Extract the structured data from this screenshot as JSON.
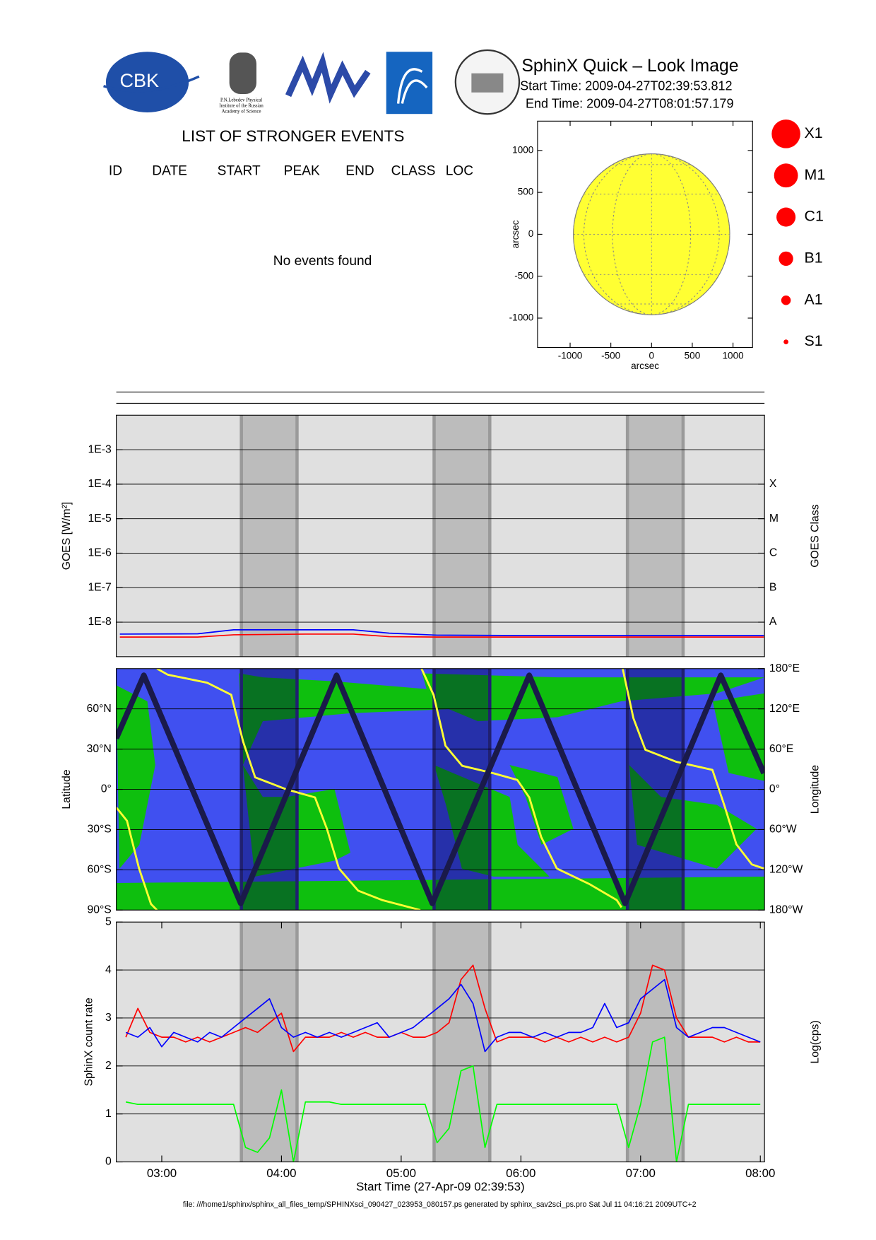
{
  "header": {
    "title": "SphinX Quick – Look Image",
    "start_time": "Start Time: 2009-04-27T02:39:53.812",
    "end_time": "End Time: 2009-04-27T08:01:57.179"
  },
  "logos": {
    "cbk": "CBK",
    "lebedev": [
      "P.N.Lebedev Physical",
      "Institute of the Russian",
      "Academy of Science"
    ]
  },
  "events": {
    "title": "LIST OF STRONGER EVENTS",
    "columns": [
      "ID",
      "DATE",
      "START",
      "PEAK",
      "END",
      "CLASS",
      "LOC"
    ],
    "message": "No events found"
  },
  "class_legend": [
    "X1",
    "M1",
    "C1",
    "B1",
    "A1",
    "S1"
  ],
  "eclipses": [
    [
      3.665,
      4.13
    ],
    [
      5.275,
      5.74
    ],
    [
      6.89,
      7.355
    ]
  ],
  "footer": "file: ///home1/sphinx/sphinx_all_files_temp/SPHINXsci_090427_023953_080157.ps generated by sphinx_sav2sci_ps.pro Sat Jul 11 04:16:21 2009UTC+2",
  "chart_data": [
    {
      "type": "disk",
      "xlabel": "arcsec",
      "ylabel": "arcsec",
      "xlim": [
        -1400,
        1240
      ],
      "ylim": [
        -1350,
        1350
      ],
      "xticks": [
        -1000,
        -500,
        0,
        500,
        1000
      ],
      "yticks": [
        -1000,
        -500,
        0,
        500,
        1000
      ],
      "radius": 960,
      "color": "#ffff33"
    },
    {
      "type": "line",
      "ylabel": "GOES [W/m²]",
      "y2label": "GOES Class",
      "log": true,
      "grid": true,
      "background": "#e0e0e0",
      "xlim": [
        2.62,
        8.035
      ],
      "ylim": [
        1e-09,
        0.01
      ],
      "yticks": [
        {
          "value": 0.001,
          "label": "1E-3"
        },
        {
          "value": 0.0001,
          "label": "1E-4"
        },
        {
          "value": 1e-05,
          "label": "1E-5"
        },
        {
          "value": 1e-06,
          "label": "1E-6"
        },
        {
          "value": 1e-07,
          "label": "1E-7"
        },
        {
          "value": 1e-08,
          "label": "1E-8"
        }
      ],
      "y2ticks": [
        {
          "value": 0.0001,
          "label": "X"
        },
        {
          "value": 1e-05,
          "label": "M"
        },
        {
          "value": 1e-06,
          "label": "C"
        },
        {
          "value": 1e-07,
          "label": "B"
        },
        {
          "value": 1e-08,
          "label": "A"
        }
      ],
      "series": [
        {
          "color": "#ff0000",
          "x": [
            2.65,
            3.3,
            3.6,
            4.2,
            4.6,
            4.9,
            5.3,
            6.0,
            7.0,
            8.03
          ],
          "values": [
            3.7e-09,
            3.7e-09,
            4.3e-09,
            4.5e-09,
            4.5e-09,
            3.8e-09,
            3.7e-09,
            3.7e-09,
            3.7e-09,
            3.7e-09
          ]
        },
        {
          "color": "#0000ff",
          "x": [
            2.65,
            3.3,
            3.6,
            4.2,
            4.6,
            4.9,
            5.3,
            6.0,
            7.0,
            8.03
          ],
          "values": [
            4.5e-09,
            4.6e-09,
            6e-09,
            6e-09,
            6e-09,
            4.8e-09,
            4.2e-09,
            4.1e-09,
            4.1e-09,
            4.1e-09
          ]
        }
      ]
    },
    {
      "type": "line",
      "ylabel": "Latitude",
      "y2label": "Longitude",
      "grid": true,
      "background": "#4050f0",
      "xlim": [
        2.62,
        8.035
      ],
      "ylim": [
        -90,
        90
      ],
      "y2lim": [
        -180,
        180
      ],
      "yticks": [
        {
          "value": 60,
          "label": "60°N"
        },
        {
          "value": 30,
          "label": "30°N"
        },
        {
          "value": 0,
          "label": "0°"
        },
        {
          "value": -30,
          "label": "30°S"
        },
        {
          "value": -60,
          "label": "60°S"
        },
        {
          "value": -90,
          "label": "90°S"
        }
      ],
      "y2ticks": [
        {
          "value": 180,
          "label": "180°E"
        },
        {
          "value": 120,
          "label": "120°E"
        },
        {
          "value": 60,
          "label": "60°E"
        },
        {
          "value": 0,
          "label": "0°"
        },
        {
          "value": -60,
          "label": "60°W"
        },
        {
          "value": -120,
          "label": "120°W"
        },
        {
          "value": -180,
          "label": "180°W"
        }
      ],
      "series": [
        {
          "color": "#ffff33",
          "axis": "y2",
          "x": [
            2.62,
            2.71,
            2.81,
            2.91,
            2.96,
            2.96,
            2.96,
            3.05,
            3.38,
            3.58,
            3.68,
            3.78,
            4.04,
            4.28,
            4.38,
            4.48,
            4.64,
            4.84,
            5.16,
            5.17,
            5.17,
            5.27,
            5.37,
            5.51,
            5.77,
            5.97,
            6.07,
            6.17,
            6.3,
            6.57,
            6.8,
            6.84,
            6.85,
            6.85,
            6.94,
            7.04,
            7.3,
            7.6,
            7.7,
            7.8,
            7.93,
            8.03
          ],
          "values": [
            -27,
            -47,
            -118,
            -171,
            -180,
            null,
            180,
            171,
            159,
            141,
            71,
            18,
            0,
            -12,
            -59,
            -118,
            -151,
            -165,
            -180,
            null,
            180,
            141,
            65,
            35,
            24,
            14,
            -12,
            -71,
            -118,
            -141,
            -165,
            -176,
            null,
            180,
            106,
            59,
            41,
            29,
            -24,
            -82,
            -112,
            -118
          ]
        },
        {
          "color": "#1a1a4a",
          "x": [
            2.62,
            2.85,
            3.66,
            4.46,
            5.26,
            6.07,
            6.87,
            7.67,
            8.03
          ],
          "values": [
            38,
            85,
            -85,
            85,
            -85,
            85,
            -85,
            85,
            12
          ]
        }
      ]
    },
    {
      "type": "line",
      "ylabel": "SphinX count rate",
      "y2label": "Log(cps)",
      "xlabel": "Start Time (27-Apr-09 02:39:53)",
      "grid": true,
      "background": "#e0e0e0",
      "xlim": [
        2.62,
        8.035
      ],
      "ylim": [
        0,
        5
      ],
      "yticks": [
        0,
        1,
        2,
        3,
        4,
        5
      ],
      "xticks": [
        {
          "value": 3,
          "label": "03:00"
        },
        {
          "value": 4,
          "label": "04:00"
        },
        {
          "value": 5,
          "label": "05:00"
        },
        {
          "value": 6,
          "label": "06:00"
        },
        {
          "value": 7,
          "label": "07:00"
        },
        {
          "value": 8,
          "label": "08:00"
        }
      ],
      "x": [
        2.7,
        2.8,
        2.9,
        3.0,
        3.1,
        3.2,
        3.3,
        3.4,
        3.5,
        3.6,
        3.7,
        3.8,
        3.9,
        4.0,
        4.1,
        4.2,
        4.3,
        4.4,
        4.5,
        4.6,
        4.7,
        4.8,
        4.9,
        5.0,
        5.1,
        5.2,
        5.3,
        5.4,
        5.5,
        5.6,
        5.7,
        5.8,
        5.9,
        6.0,
        6.1,
        6.2,
        6.3,
        6.4,
        6.5,
        6.6,
        6.7,
        6.8,
        6.9,
        7.0,
        7.1,
        7.2,
        7.3,
        7.4,
        7.5,
        7.6,
        7.7,
        7.8,
        7.9,
        8.0
      ],
      "series": [
        {
          "color": "#00ff00",
          "values": [
            1.25,
            1.2,
            1.2,
            1.2,
            1.2,
            1.2,
            1.2,
            1.2,
            1.2,
            1.2,
            0.3,
            0.2,
            0.5,
            1.5,
            0.0,
            1.25,
            1.25,
            1.25,
            1.2,
            1.2,
            1.2,
            1.2,
            1.2,
            1.2,
            1.2,
            1.2,
            0.4,
            0.7,
            1.9,
            2.0,
            0.3,
            1.2,
            1.2,
            1.2,
            1.2,
            1.2,
            1.2,
            1.2,
            1.2,
            1.2,
            1.2,
            1.2,
            0.3,
            1.2,
            2.5,
            2.6,
            0.0,
            1.2,
            1.2,
            1.2,
            1.2,
            1.2,
            1.2,
            1.2
          ]
        },
        {
          "color": "#ff0000",
          "values": [
            2.6,
            3.2,
            2.7,
            2.6,
            2.6,
            2.5,
            2.6,
            2.5,
            2.6,
            2.7,
            2.8,
            2.7,
            2.9,
            3.1,
            2.3,
            2.6,
            2.6,
            2.6,
            2.7,
            2.6,
            2.7,
            2.6,
            2.6,
            2.7,
            2.6,
            2.6,
            2.7,
            2.9,
            3.8,
            4.1,
            3.2,
            2.5,
            2.6,
            2.6,
            2.6,
            2.5,
            2.6,
            2.5,
            2.6,
            2.5,
            2.6,
            2.5,
            2.6,
            3.1,
            4.1,
            4.0,
            3.0,
            2.6,
            2.6,
            2.6,
            2.5,
            2.6,
            2.5,
            2.5
          ]
        },
        {
          "color": "#0000ff",
          "values": [
            2.7,
            2.6,
            2.8,
            2.4,
            2.7,
            2.6,
            2.5,
            2.7,
            2.6,
            2.8,
            3.0,
            3.2,
            3.4,
            2.8,
            2.6,
            2.7,
            2.6,
            2.7,
            2.6,
            2.7,
            2.8,
            2.9,
            2.6,
            2.7,
            2.8,
            3.0,
            3.2,
            3.4,
            3.7,
            3.3,
            2.3,
            2.6,
            2.7,
            2.7,
            2.6,
            2.7,
            2.6,
            2.7,
            2.7,
            2.8,
            3.3,
            2.8,
            2.9,
            3.4,
            3.6,
            3.8,
            2.8,
            2.6,
            2.7,
            2.8,
            2.8,
            2.7,
            2.6,
            2.5
          ]
        }
      ]
    }
  ]
}
